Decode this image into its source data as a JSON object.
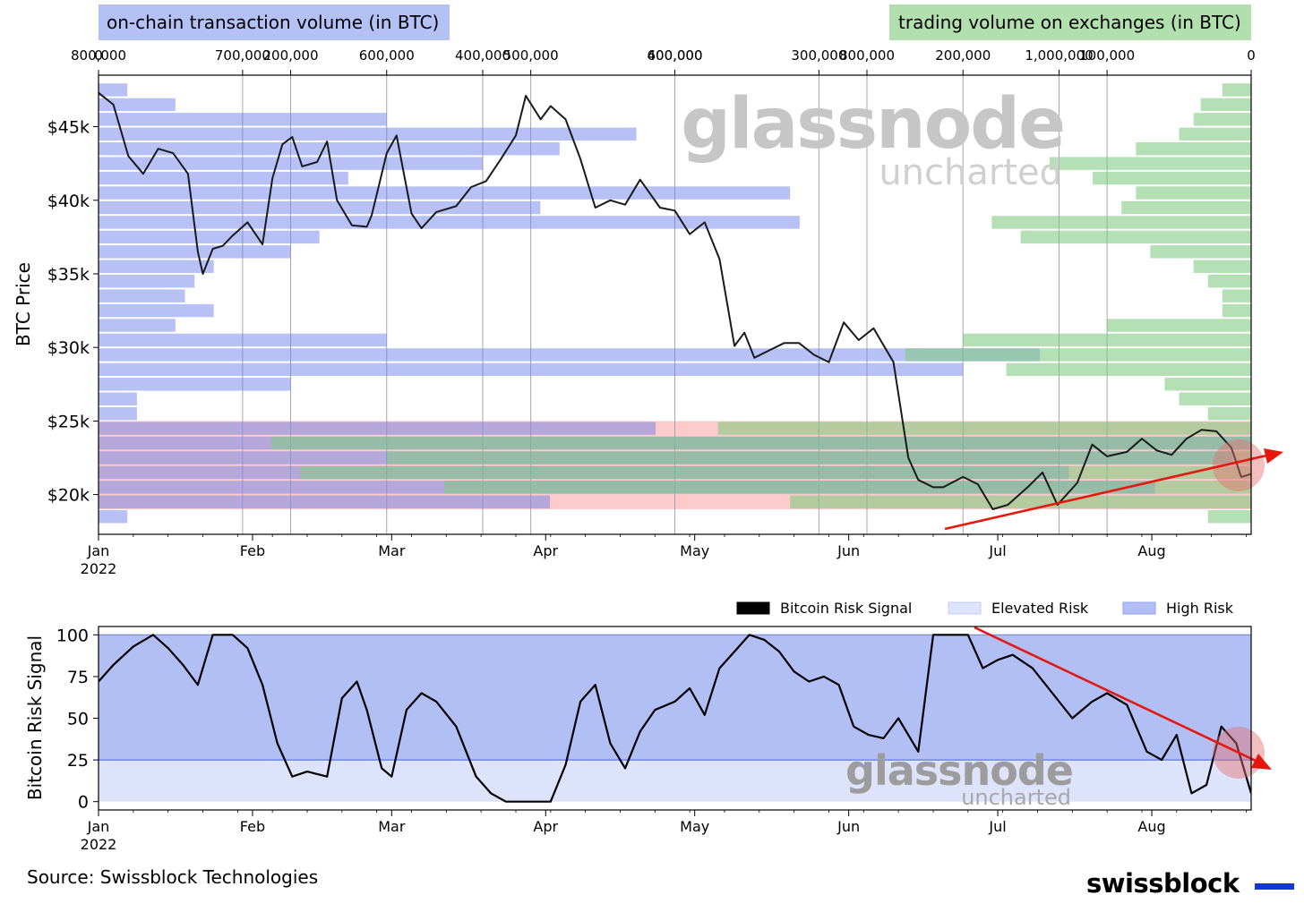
{
  "colors": {
    "price_line": "#1a1a1a",
    "onchain_bars": "#6f84ec",
    "exchange_bars": "#7fc97f",
    "risk_band": "#fa7676",
    "high_risk": "#b1bff5",
    "elevated_risk": "#dde3fb",
    "risk_threshold_line": "#6f84ec",
    "arrow": "#e4180e",
    "highlight_circle": "#e56e6e",
    "brand_bar": "#1338d6"
  },
  "header": {
    "left_box": "on-chain transaction volume (in BTC)",
    "left_box_color": "#b4c1f5",
    "right_box": "trading volume on exchanges (in BTC)",
    "right_box_color": "#b2dfae"
  },
  "watermark": {
    "main": "glassnode",
    "sub": "uncharted"
  },
  "footer": {
    "source": "Source: Swissblock Technologies",
    "brand": "swissblock"
  },
  "chart_data": [
    {
      "type": "line",
      "panel": "price",
      "ylabel": "BTC Price",
      "ylim": [
        17300,
        48500
      ],
      "yticks": [
        20000,
        25000,
        30000,
        35000,
        40000,
        45000
      ],
      "ytick_labels": [
        "$20k",
        "$25k",
        "$30k",
        "$35k",
        "$40k",
        "$45k"
      ],
      "xlim": [
        "2022-01-01",
        "2022-08-21"
      ],
      "xticks": [
        "2022-01-01",
        "2022-02-01",
        "2022-03-01",
        "2022-04-01",
        "2022-05-01",
        "2022-06-01",
        "2022-07-01",
        "2022-08-01"
      ],
      "xtick_labels": [
        "Jan",
        "Feb",
        "Mar",
        "Apr",
        "May",
        "Jun",
        "Jul",
        "Aug"
      ],
      "year_label": "2022",
      "series": [
        {
          "x": [
            "2022-01-01",
            "2022-01-04",
            "2022-01-07",
            "2022-01-10",
            "2022-01-13",
            "2022-01-16",
            "2022-01-19",
            "2022-01-21",
            "2022-01-22",
            "2022-01-24",
            "2022-01-26",
            "2022-01-28",
            "2022-01-31",
            "2022-02-03",
            "2022-02-05",
            "2022-02-07",
            "2022-02-09",
            "2022-02-11",
            "2022-02-14",
            "2022-02-16",
            "2022-02-18",
            "2022-02-21",
            "2022-02-24",
            "2022-02-25",
            "2022-02-28",
            "2022-03-02",
            "2022-03-05",
            "2022-03-07",
            "2022-03-10",
            "2022-03-14",
            "2022-03-17",
            "2022-03-20",
            "2022-03-23",
            "2022-03-26",
            "2022-03-28",
            "2022-03-31",
            "2022-04-02",
            "2022-04-05",
            "2022-04-08",
            "2022-04-11",
            "2022-04-14",
            "2022-04-17",
            "2022-04-20",
            "2022-04-24",
            "2022-04-27",
            "2022-04-30",
            "2022-05-03",
            "2022-05-06",
            "2022-05-09",
            "2022-05-11",
            "2022-05-13",
            "2022-05-16",
            "2022-05-19",
            "2022-05-22",
            "2022-05-25",
            "2022-05-28",
            "2022-05-31",
            "2022-06-03",
            "2022-06-06",
            "2022-06-10",
            "2022-06-13",
            "2022-06-15",
            "2022-06-18",
            "2022-06-20",
            "2022-06-24",
            "2022-06-27",
            "2022-06-30",
            "2022-07-03",
            "2022-07-07",
            "2022-07-10",
            "2022-07-13",
            "2022-07-17",
            "2022-07-20",
            "2022-07-23",
            "2022-07-27",
            "2022-07-30",
            "2022-08-02",
            "2022-08-05",
            "2022-08-08",
            "2022-08-11",
            "2022-08-14",
            "2022-08-17",
            "2022-08-19",
            "2022-08-21"
          ],
          "y": [
            47300,
            46500,
            43000,
            41800,
            43500,
            43200,
            41800,
            36500,
            35000,
            36700,
            36900,
            37600,
            38500,
            37000,
            41500,
            43800,
            44300,
            42300,
            42600,
            44000,
            40000,
            38300,
            38200,
            39000,
            43200,
            44400,
            39100,
            38100,
            39200,
            39600,
            40900,
            41300,
            42800,
            44400,
            47100,
            45500,
            46400,
            45500,
            42800,
            39500,
            40000,
            39700,
            41400,
            39500,
            39300,
            37700,
            38500,
            36000,
            30100,
            31000,
            29300,
            29800,
            30300,
            30300,
            29500,
            29000,
            31700,
            30500,
            31300,
            29000,
            22500,
            21000,
            20500,
            20500,
            21200,
            20700,
            19000,
            19300,
            20500,
            21500,
            19300,
            20800,
            23400,
            22600,
            22900,
            23800,
            23000,
            22700,
            23800,
            24400,
            24300,
            23200,
            21200,
            21400
          ]
        }
      ]
    },
    {
      "type": "bar",
      "panel": "on-chain transaction volume profile",
      "orientation": "horizontal",
      "xlim": [
        0,
        1200000
      ],
      "xticks": [
        0,
        200000,
        400000,
        600000,
        800000,
        1000000
      ],
      "xtick_labels": [
        "0",
        "200,000",
        "400,000",
        "600,000",
        "800,000",
        "1,000,000"
      ],
      "categories": [
        18500,
        19500,
        20500,
        21500,
        22500,
        23500,
        24500,
        25500,
        26500,
        27500,
        28500,
        29500,
        30500,
        31500,
        32500,
        33500,
        34500,
        35500,
        36500,
        37500,
        38500,
        39500,
        40500,
        41500,
        42500,
        43500,
        44500,
        45500,
        46500,
        47500
      ],
      "values": [
        30000,
        470000,
        1100000,
        1010000,
        1180000,
        1300000,
        580000,
        40000,
        40000,
        200000,
        900000,
        980000,
        300000,
        80000,
        120000,
        90000,
        100000,
        120000,
        200000,
        230000,
        730000,
        460000,
        720000,
        260000,
        400000,
        480000,
        560000,
        300000,
        80000,
        30000
      ]
    },
    {
      "type": "bar",
      "panel": "trading volume on exchanges profile",
      "orientation": "horizontal",
      "xlim": [
        0,
        800000
      ],
      "xticks": [
        0,
        100000,
        200000,
        300000,
        400000,
        500000,
        600000,
        700000,
        800000
      ],
      "xtick_labels": [
        "0",
        "100,000",
        "200,000",
        "300,000",
        "400,000",
        "500,000",
        "600,000",
        "700,000",
        "800,000"
      ],
      "categories": [
        18500,
        19500,
        20500,
        21500,
        22500,
        23500,
        24500,
        25500,
        26500,
        27500,
        28500,
        29500,
        30500,
        31500,
        32500,
        33500,
        34500,
        35500,
        36500,
        37500,
        38500,
        39500,
        40500,
        41500,
        42500,
        43500,
        44500,
        45500,
        46500,
        47500
      ],
      "values": [
        30000,
        320000,
        560000,
        660000,
        600000,
        680000,
        370000,
        30000,
        50000,
        60000,
        170000,
        240000,
        200000,
        100000,
        20000,
        20000,
        30000,
        40000,
        70000,
        160000,
        180000,
        90000,
        80000,
        110000,
        140000,
        80000,
        50000,
        40000,
        35000,
        20000
      ]
    },
    {
      "type": "area",
      "panel": "risk",
      "ylabel": "Bitcoin Risk Signal",
      "ylim": [
        -5,
        105
      ],
      "yticks": [
        0,
        25,
        50,
        75,
        100
      ],
      "ytick_labels": [
        "0",
        "25",
        "50",
        "75",
        "100"
      ],
      "xlim": [
        "2022-01-01",
        "2022-08-21"
      ],
      "xticks": [
        "2022-01-01",
        "2022-02-01",
        "2022-03-01",
        "2022-04-01",
        "2022-05-01",
        "2022-06-01",
        "2022-07-01",
        "2022-08-01"
      ],
      "xtick_labels": [
        "Jan",
        "Feb",
        "Mar",
        "Apr",
        "May",
        "Jun",
        "Jul",
        "Aug"
      ],
      "year_label": "2022",
      "legend": [
        "Bitcoin Risk Signal",
        "Elevated Risk",
        "High Risk"
      ],
      "legend_position": "top-right",
      "bands": {
        "elevated_risk": [
          0,
          25
        ],
        "high_risk": [
          25,
          100
        ]
      },
      "series": [
        {
          "name": "Bitcoin Risk Signal",
          "x": [
            "2022-01-01",
            "2022-01-04",
            "2022-01-08",
            "2022-01-12",
            "2022-01-15",
            "2022-01-18",
            "2022-01-21",
            "2022-01-24",
            "2022-01-28",
            "2022-01-31",
            "2022-02-03",
            "2022-02-06",
            "2022-02-09",
            "2022-02-12",
            "2022-02-16",
            "2022-02-19",
            "2022-02-22",
            "2022-02-24",
            "2022-02-27",
            "2022-03-01",
            "2022-03-04",
            "2022-03-07",
            "2022-03-10",
            "2022-03-14",
            "2022-03-18",
            "2022-03-21",
            "2022-03-24",
            "2022-03-27",
            "2022-03-30",
            "2022-04-02",
            "2022-04-05",
            "2022-04-08",
            "2022-04-11",
            "2022-04-14",
            "2022-04-17",
            "2022-04-20",
            "2022-04-23",
            "2022-04-27",
            "2022-04-30",
            "2022-05-03",
            "2022-05-06",
            "2022-05-09",
            "2022-05-12",
            "2022-05-15",
            "2022-05-18",
            "2022-05-21",
            "2022-05-24",
            "2022-05-27",
            "2022-05-30",
            "2022-06-02",
            "2022-06-05",
            "2022-06-08",
            "2022-06-11",
            "2022-06-15",
            "2022-06-18",
            "2022-06-22",
            "2022-06-25",
            "2022-06-28",
            "2022-07-01",
            "2022-07-04",
            "2022-07-08",
            "2022-07-12",
            "2022-07-16",
            "2022-07-20",
            "2022-07-23",
            "2022-07-27",
            "2022-07-31",
            "2022-08-03",
            "2022-08-06",
            "2022-08-09",
            "2022-08-12",
            "2022-08-15",
            "2022-08-18",
            "2022-08-21"
          ],
          "y": [
            72,
            82,
            93,
            100,
            92,
            82,
            70,
            100,
            100,
            92,
            70,
            35,
            15,
            18,
            15,
            62,
            72,
            55,
            20,
            15,
            55,
            65,
            60,
            45,
            15,
            5,
            0,
            0,
            0,
            0,
            22,
            60,
            70,
            35,
            20,
            42,
            55,
            60,
            68,
            52,
            80,
            90,
            100,
            97,
            90,
            78,
            72,
            75,
            70,
            45,
            40,
            38,
            50,
            30,
            100,
            100,
            100,
            80,
            85,
            88,
            80,
            65,
            50,
            60,
            65,
            58,
            30,
            25,
            40,
            5,
            10,
            45,
            35,
            5
          ]
        }
      ]
    }
  ]
}
